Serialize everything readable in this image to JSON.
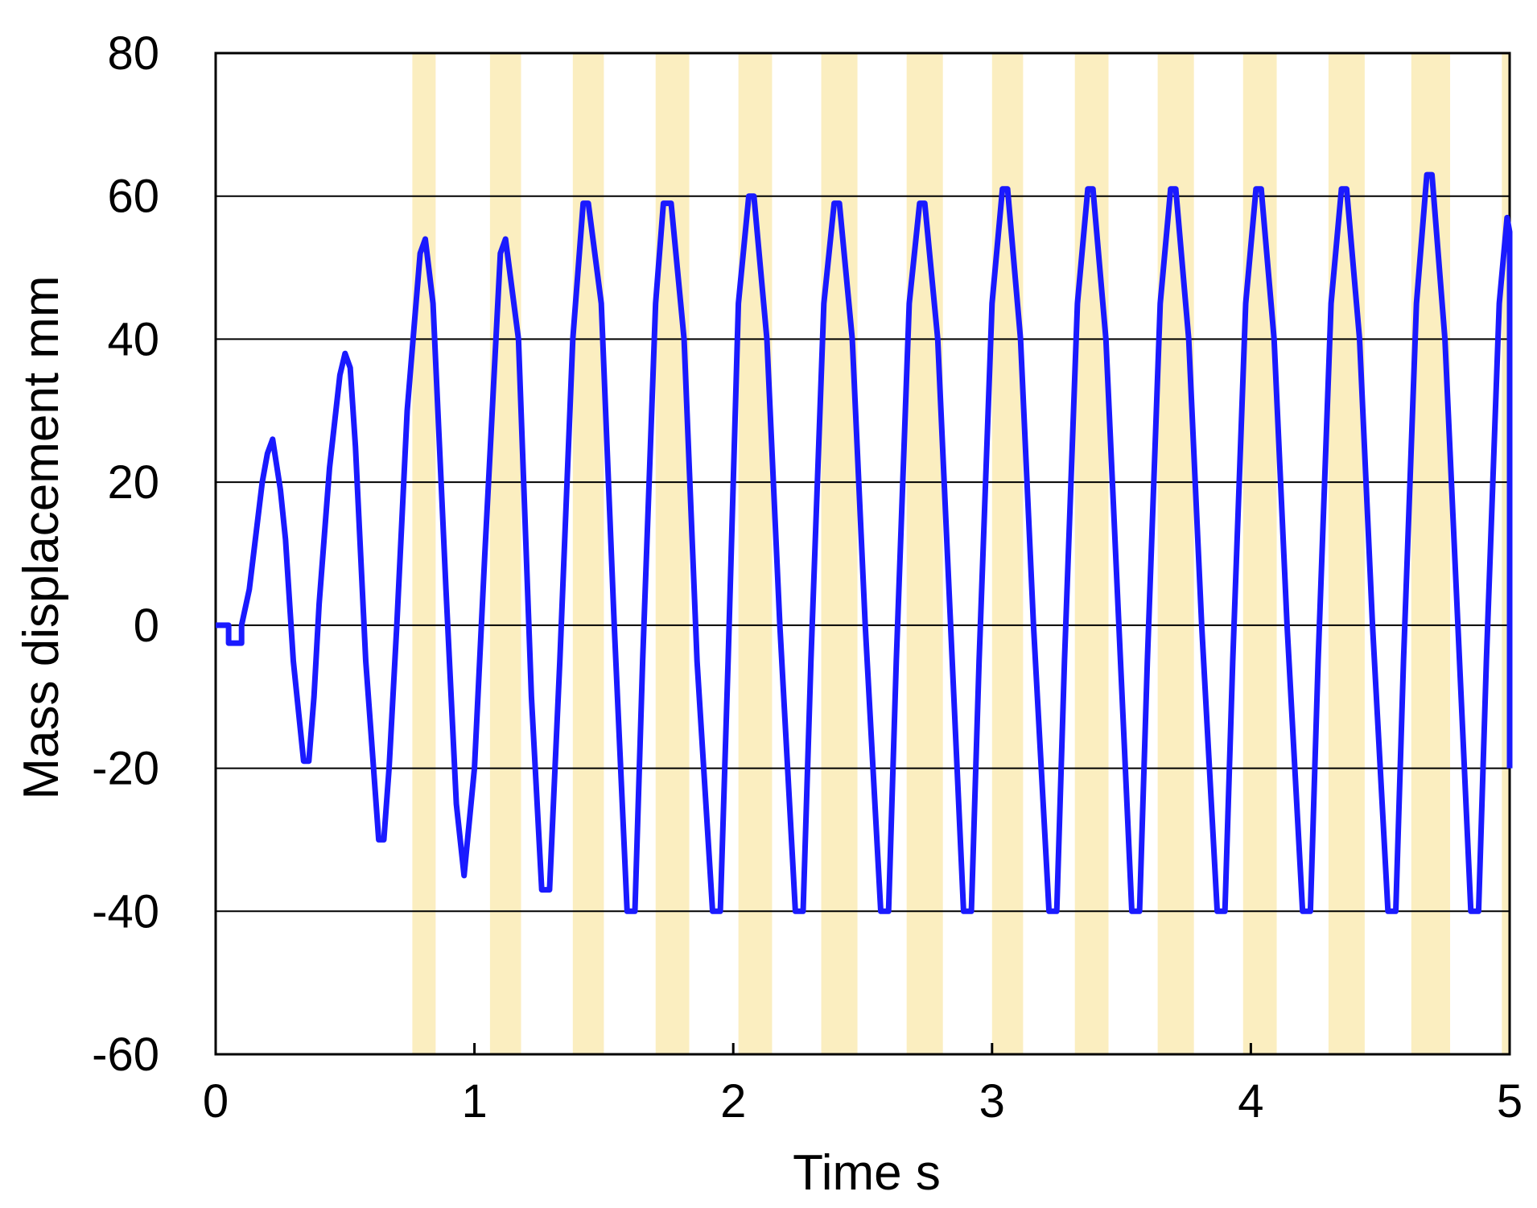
{
  "chart_data": {
    "type": "line",
    "title": "",
    "xlabel": "Time s",
    "ylabel": "Mass displacement mm",
    "xlim": [
      0,
      5
    ],
    "ylim": [
      -60,
      80
    ],
    "x_ticks": [
      0,
      1,
      2,
      3,
      4,
      5
    ],
    "y_ticks": [
      -60,
      -40,
      -20,
      0,
      20,
      40,
      60,
      80
    ],
    "grid": "horizontal",
    "legend": "none",
    "colors": {
      "line": "#1a1aff",
      "band": "#fbeec0",
      "grid": "#000000"
    },
    "shaded_bands": [
      [
        0.76,
        0.85
      ],
      [
        1.06,
        1.18
      ],
      [
        1.38,
        1.5
      ],
      [
        1.7,
        1.83
      ],
      [
        2.02,
        2.15
      ],
      [
        2.34,
        2.48
      ],
      [
        2.67,
        2.81
      ],
      [
        3.0,
        3.12
      ],
      [
        3.32,
        3.45
      ],
      [
        3.64,
        3.78
      ],
      [
        3.97,
        4.1
      ],
      [
        4.3,
        4.44
      ],
      [
        4.62,
        4.77
      ],
      [
        4.97,
        5.0
      ]
    ],
    "series": [
      {
        "x": [
          0,
          0.05,
          0.05,
          0.1,
          0.1,
          0.13,
          0.18,
          0.2,
          0.22,
          0.25,
          0.27,
          0.3,
          0.34,
          0.36,
          0.38,
          0.4,
          0.44,
          0.48,
          0.5,
          0.52,
          0.54,
          0.58,
          0.6,
          0.63,
          0.65,
          0.67,
          0.7,
          0.74,
          0.79,
          0.81,
          0.84,
          0.89,
          0.93,
          0.96,
          1.0,
          1.04,
          1.1,
          1.12,
          1.17,
          1.22,
          1.26,
          1.29,
          1.33,
          1.38,
          1.42,
          1.44,
          1.49,
          1.54,
          1.59,
          1.62,
          1.65,
          1.7,
          1.73,
          1.76,
          1.81,
          1.86,
          1.92,
          1.95,
          1.98,
          2.02,
          2.06,
          2.08,
          2.13,
          2.18,
          2.24,
          2.27,
          2.3,
          2.35,
          2.39,
          2.41,
          2.46,
          2.51,
          2.57,
          2.6,
          2.63,
          2.68,
          2.72,
          2.74,
          2.79,
          2.84,
          2.89,
          2.92,
          2.95,
          3.0,
          3.04,
          3.06,
          3.11,
          3.16,
          3.22,
          3.25,
          3.28,
          3.33,
          3.37,
          3.39,
          3.44,
          3.49,
          3.54,
          3.57,
          3.6,
          3.65,
          3.69,
          3.71,
          3.76,
          3.81,
          3.87,
          3.9,
          3.93,
          3.98,
          4.02,
          4.04,
          4.09,
          4.14,
          4.2,
          4.23,
          4.26,
          4.31,
          4.35,
          4.37,
          4.42,
          4.47,
          4.53,
          4.56,
          4.59,
          4.64,
          4.68,
          4.7,
          4.75,
          4.8,
          4.85,
          4.88,
          4.91,
          4.96,
          4.99,
          5.0,
          5.0
        ],
        "y": [
          0,
          0,
          -2.5,
          -2.5,
          0,
          5,
          20,
          24,
          26,
          19,
          12,
          -5,
          -19,
          -19,
          -10,
          3,
          22,
          35,
          38,
          36,
          25,
          -5,
          -15,
          -30,
          -30,
          -20,
          0,
          30,
          52,
          54,
          45,
          5,
          -25,
          -35,
          -20,
          10,
          52,
          54,
          40,
          -10,
          -37,
          -37,
          -5,
          40,
          59,
          59,
          45,
          0,
          -40,
          -40,
          -5,
          45,
          59,
          59,
          40,
          -5,
          -40,
          -40,
          -5,
          45,
          60,
          60,
          40,
          0,
          -40,
          -40,
          -5,
          45,
          59,
          59,
          40,
          0,
          -40,
          -40,
          -5,
          45,
          59,
          59,
          40,
          0,
          -40,
          -40,
          -5,
          45,
          61,
          61,
          40,
          0,
          -40,
          -40,
          -5,
          45,
          61,
          61,
          40,
          0,
          -40,
          -40,
          -5,
          45,
          61,
          61,
          40,
          0,
          -40,
          -40,
          -5,
          45,
          61,
          61,
          40,
          0,
          -40,
          -40,
          -5,
          45,
          61,
          61,
          40,
          0,
          -40,
          -40,
          -5,
          45,
          63,
          63,
          40,
          0,
          -40,
          -40,
          -5,
          45,
          57,
          55,
          -20
        ]
      }
    ]
  }
}
